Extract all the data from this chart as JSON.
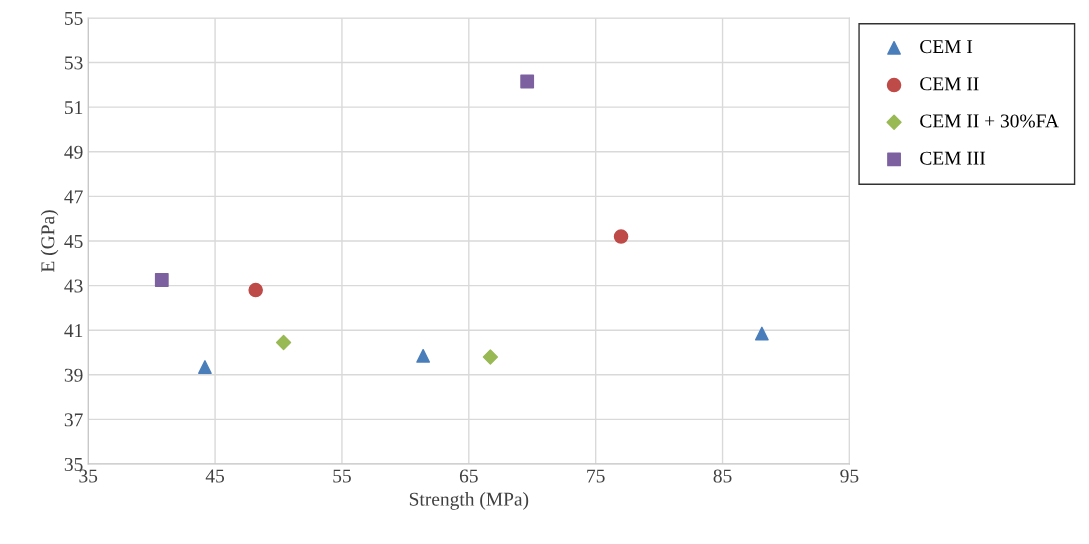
{
  "chart_data": {
    "type": "scatter",
    "xlabel": "Strength (MPa)",
    "ylabel": "E (GPa)",
    "series": [
      {
        "name": "CEM I",
        "color": "#4a7ebb",
        "marker": "triangle",
        "x": [
          44.2,
          61.4,
          88.1
        ],
        "values": [
          39.35,
          39.85,
          40.85
        ]
      },
      {
        "name": "CEM II",
        "color": "#be4b48",
        "marker": "circle",
        "x": [
          48.2,
          77.0
        ],
        "values": [
          42.8,
          45.2
        ]
      },
      {
        "name": "CEM II + 30%FA",
        "color": "#98b954",
        "marker": "diamond",
        "x": [
          50.4,
          66.7
        ],
        "values": [
          40.45,
          39.8
        ]
      },
      {
        "name": "CEM III",
        "color": "#7d60a0",
        "marker": "square",
        "x": [
          40.8,
          69.6
        ],
        "values": [
          43.25,
          52.15
        ]
      }
    ],
    "xlim": [
      35,
      95
    ],
    "xticks": [
      35,
      45,
      55,
      65,
      75,
      85,
      95
    ],
    "ylim": [
      35,
      55
    ],
    "yticks": [
      35,
      37,
      39,
      41,
      43,
      45,
      47,
      49,
      51,
      53,
      55
    ],
    "grid": true,
    "legend": "right"
  }
}
